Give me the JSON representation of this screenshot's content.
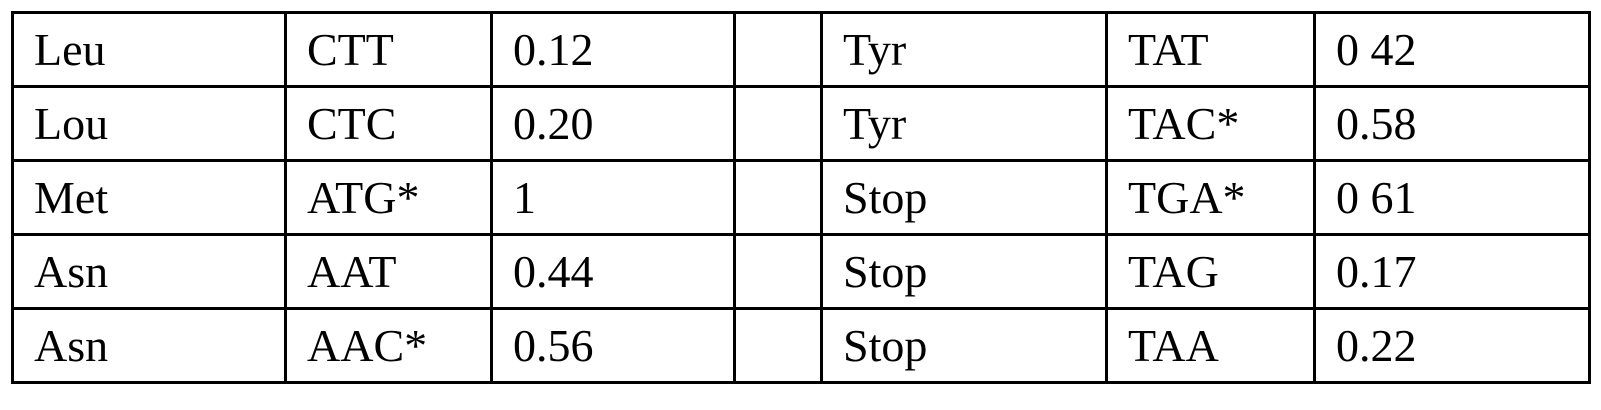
{
  "table": {
    "rows": [
      [
        "Leu",
        "CTT",
        "0.12",
        "",
        "Tyr",
        "TAT",
        "0 42"
      ],
      [
        "Lou",
        "CTC",
        "0.20",
        "",
        "Tyr",
        "TAC*",
        "0.58"
      ],
      [
        "Met",
        "ATG*",
        "1",
        "",
        "Stop",
        "TGA*",
        "0 61"
      ],
      [
        "Asn",
        "AAT",
        "0.44",
        "",
        "Stop",
        "TAG",
        "0.17"
      ],
      [
        "Asn",
        "AAC*",
        "0.56",
        "",
        "Stop",
        "TAA",
        "0.22"
      ]
    ]
  }
}
